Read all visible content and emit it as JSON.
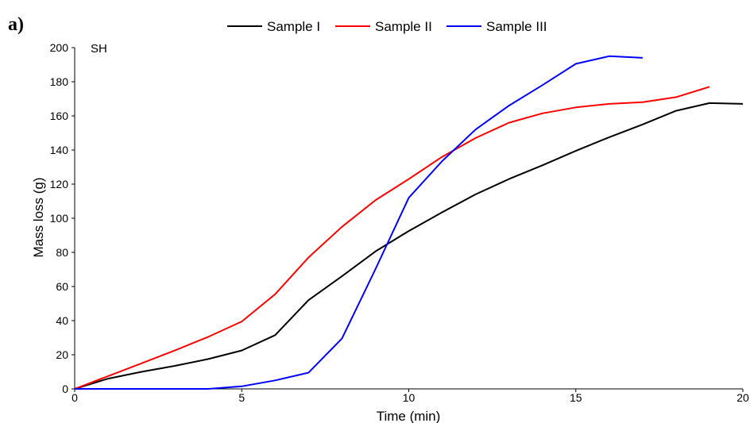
{
  "panel_label": "a)",
  "chart_data": {
    "type": "line",
    "annotation": "SH",
    "xlabel": "Time (min)",
    "ylabel": "Mass loss (g)",
    "xlim": [
      0,
      20
    ],
    "ylim": [
      0,
      200
    ],
    "x_ticks": [
      0,
      5,
      10,
      15,
      20
    ],
    "y_ticks": [
      0,
      20,
      40,
      60,
      80,
      100,
      120,
      140,
      160,
      180,
      200
    ],
    "grid": false,
    "legend_position": "top",
    "series": [
      {
        "name": "Sample I",
        "color": "#000000",
        "x": [
          0,
          1,
          2,
          3,
          4,
          5,
          6,
          7,
          8,
          9,
          10,
          11,
          12,
          13,
          14,
          15,
          16,
          17,
          18,
          19,
          20
        ],
        "y": [
          0,
          6,
          10,
          13.5,
          17.5,
          22.5,
          31.5,
          52,
          66,
          80.5,
          92.5,
          103.5,
          114,
          123,
          131,
          139.5,
          147.5,
          155,
          163,
          167.5,
          167
        ]
      },
      {
        "name": "Sample II",
        "color": "#ff0000",
        "x": [
          0,
          1,
          2,
          3,
          4,
          5,
          6,
          7,
          8,
          9,
          10,
          11,
          12,
          13,
          14,
          15,
          16,
          17,
          18,
          19
        ],
        "y": [
          0,
          7.5,
          15,
          22.5,
          30.5,
          39.5,
          55.5,
          77,
          95,
          110.5,
          123,
          136,
          147,
          156,
          161.5,
          165,
          167,
          168,
          171,
          177
        ]
      },
      {
        "name": "Sample III",
        "color": "#0000ff",
        "x": [
          0,
          1,
          2,
          3,
          4,
          5,
          6,
          7,
          8,
          9,
          10,
          11,
          12,
          13,
          14,
          15,
          16,
          17
        ],
        "y": [
          0,
          0,
          0,
          0,
          0,
          1.5,
          5,
          9.5,
          29.5,
          70,
          112,
          133.5,
          152,
          166,
          178,
          190.5,
          195,
          194
        ]
      }
    ]
  }
}
